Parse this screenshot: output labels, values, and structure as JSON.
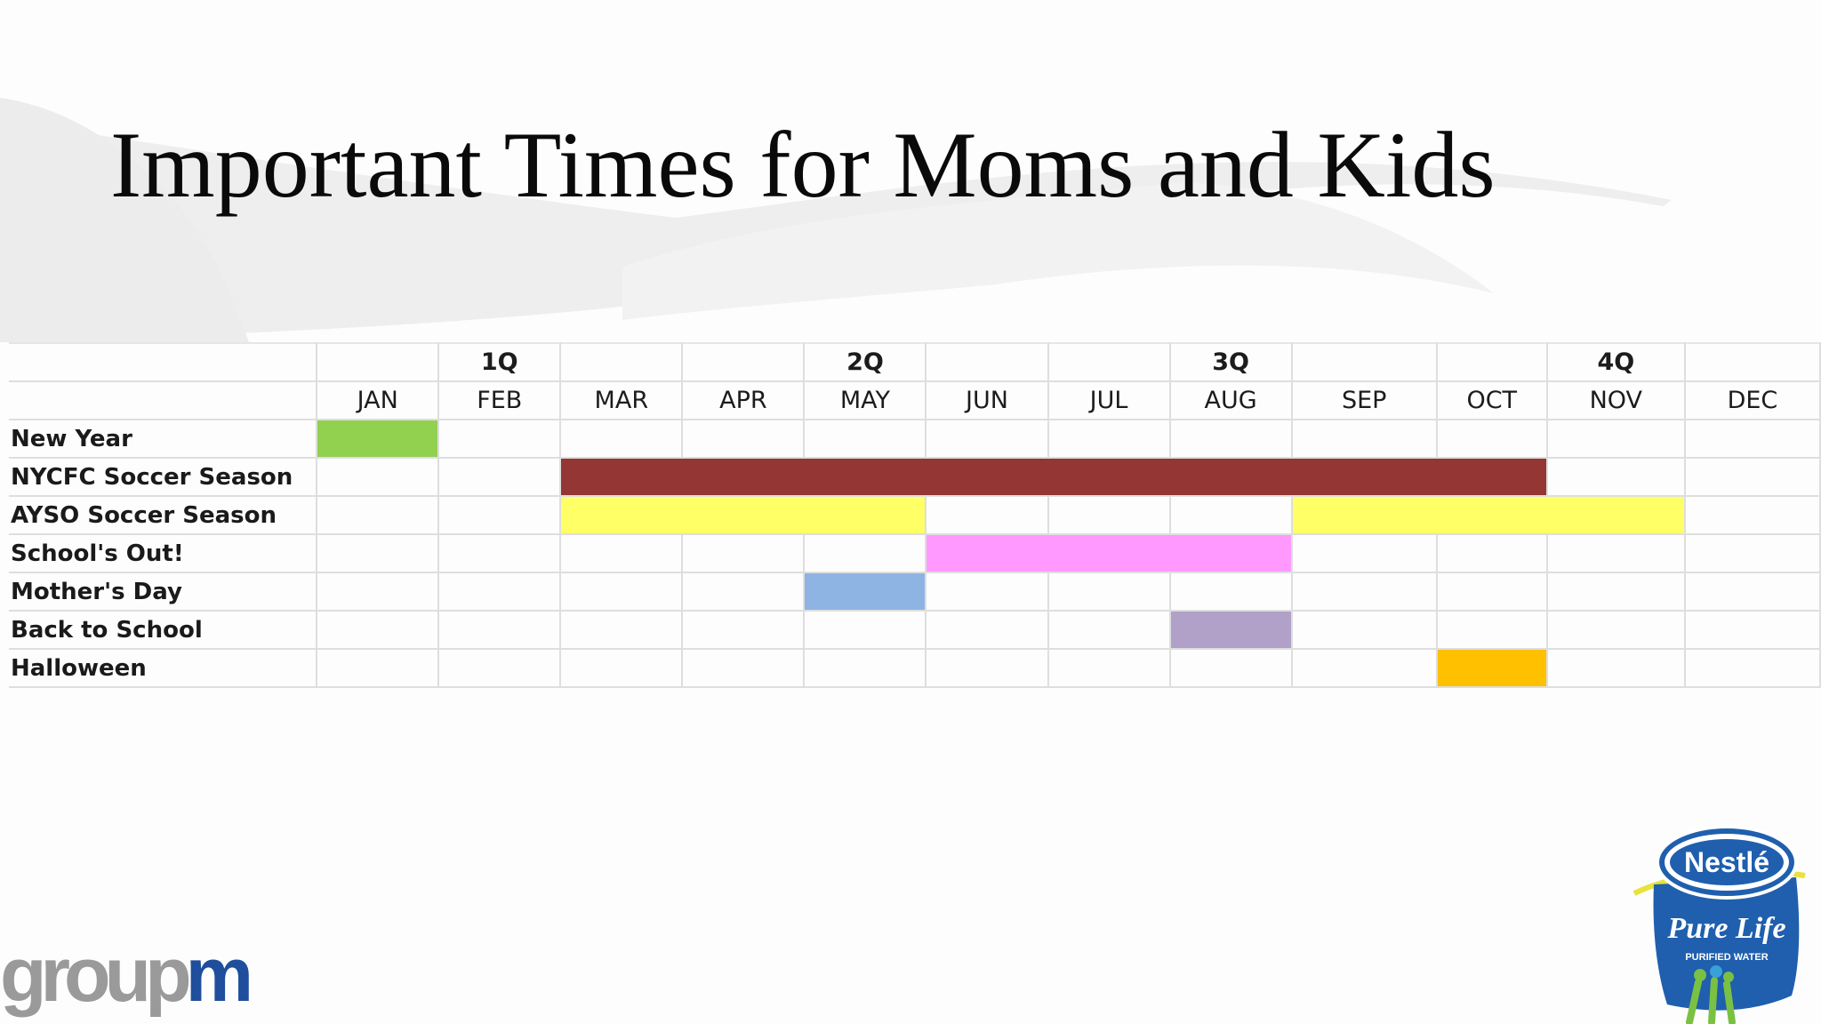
{
  "title": "Important Times for Moms and Kids",
  "quarters": [
    "1Q",
    "2Q",
    "3Q",
    "4Q"
  ],
  "months": [
    "JAN",
    "FEB",
    "MAR",
    "APR",
    "MAY",
    "JUN",
    "JUL",
    "AUG",
    "SEP",
    "OCT",
    "NOV",
    "DEC"
  ],
  "events": [
    {
      "label": "New Year",
      "start": "JAN",
      "end": "JAN",
      "color": "#92d050"
    },
    {
      "label": "NYCFC Soccer Season",
      "start": "MAR",
      "end": "OCT",
      "color": "#943634"
    },
    {
      "label": "AYSO Soccer Season",
      "spans": [
        {
          "start": "MAR",
          "end": "MAY"
        },
        {
          "start": "SEP",
          "end": "NOV"
        }
      ],
      "color": "#ffff66"
    },
    {
      "label": "School's Out!",
      "start": "JUN",
      "end": "AUG",
      "color": "#ff99ff"
    },
    {
      "label": "Mother's Day",
      "start": "MAY",
      "end": "MAY",
      "color": "#8db4e2"
    },
    {
      "label": "Back to School",
      "start": "AUG",
      "end": "AUG",
      "color": "#b1a0c7"
    },
    {
      "label": "Halloween",
      "start": "OCT",
      "end": "OCT",
      "color": "#ffc000"
    }
  ],
  "logos": {
    "left": {
      "name": "groupm",
      "text": "groupm",
      "colors": [
        "#9a9a9a",
        "#1f4e9c"
      ]
    },
    "right": {
      "name": "Nestlé Pure Life",
      "brand": "Nestlé",
      "product": "Pure Life",
      "tagline": "PURIFIED WATER"
    }
  }
}
